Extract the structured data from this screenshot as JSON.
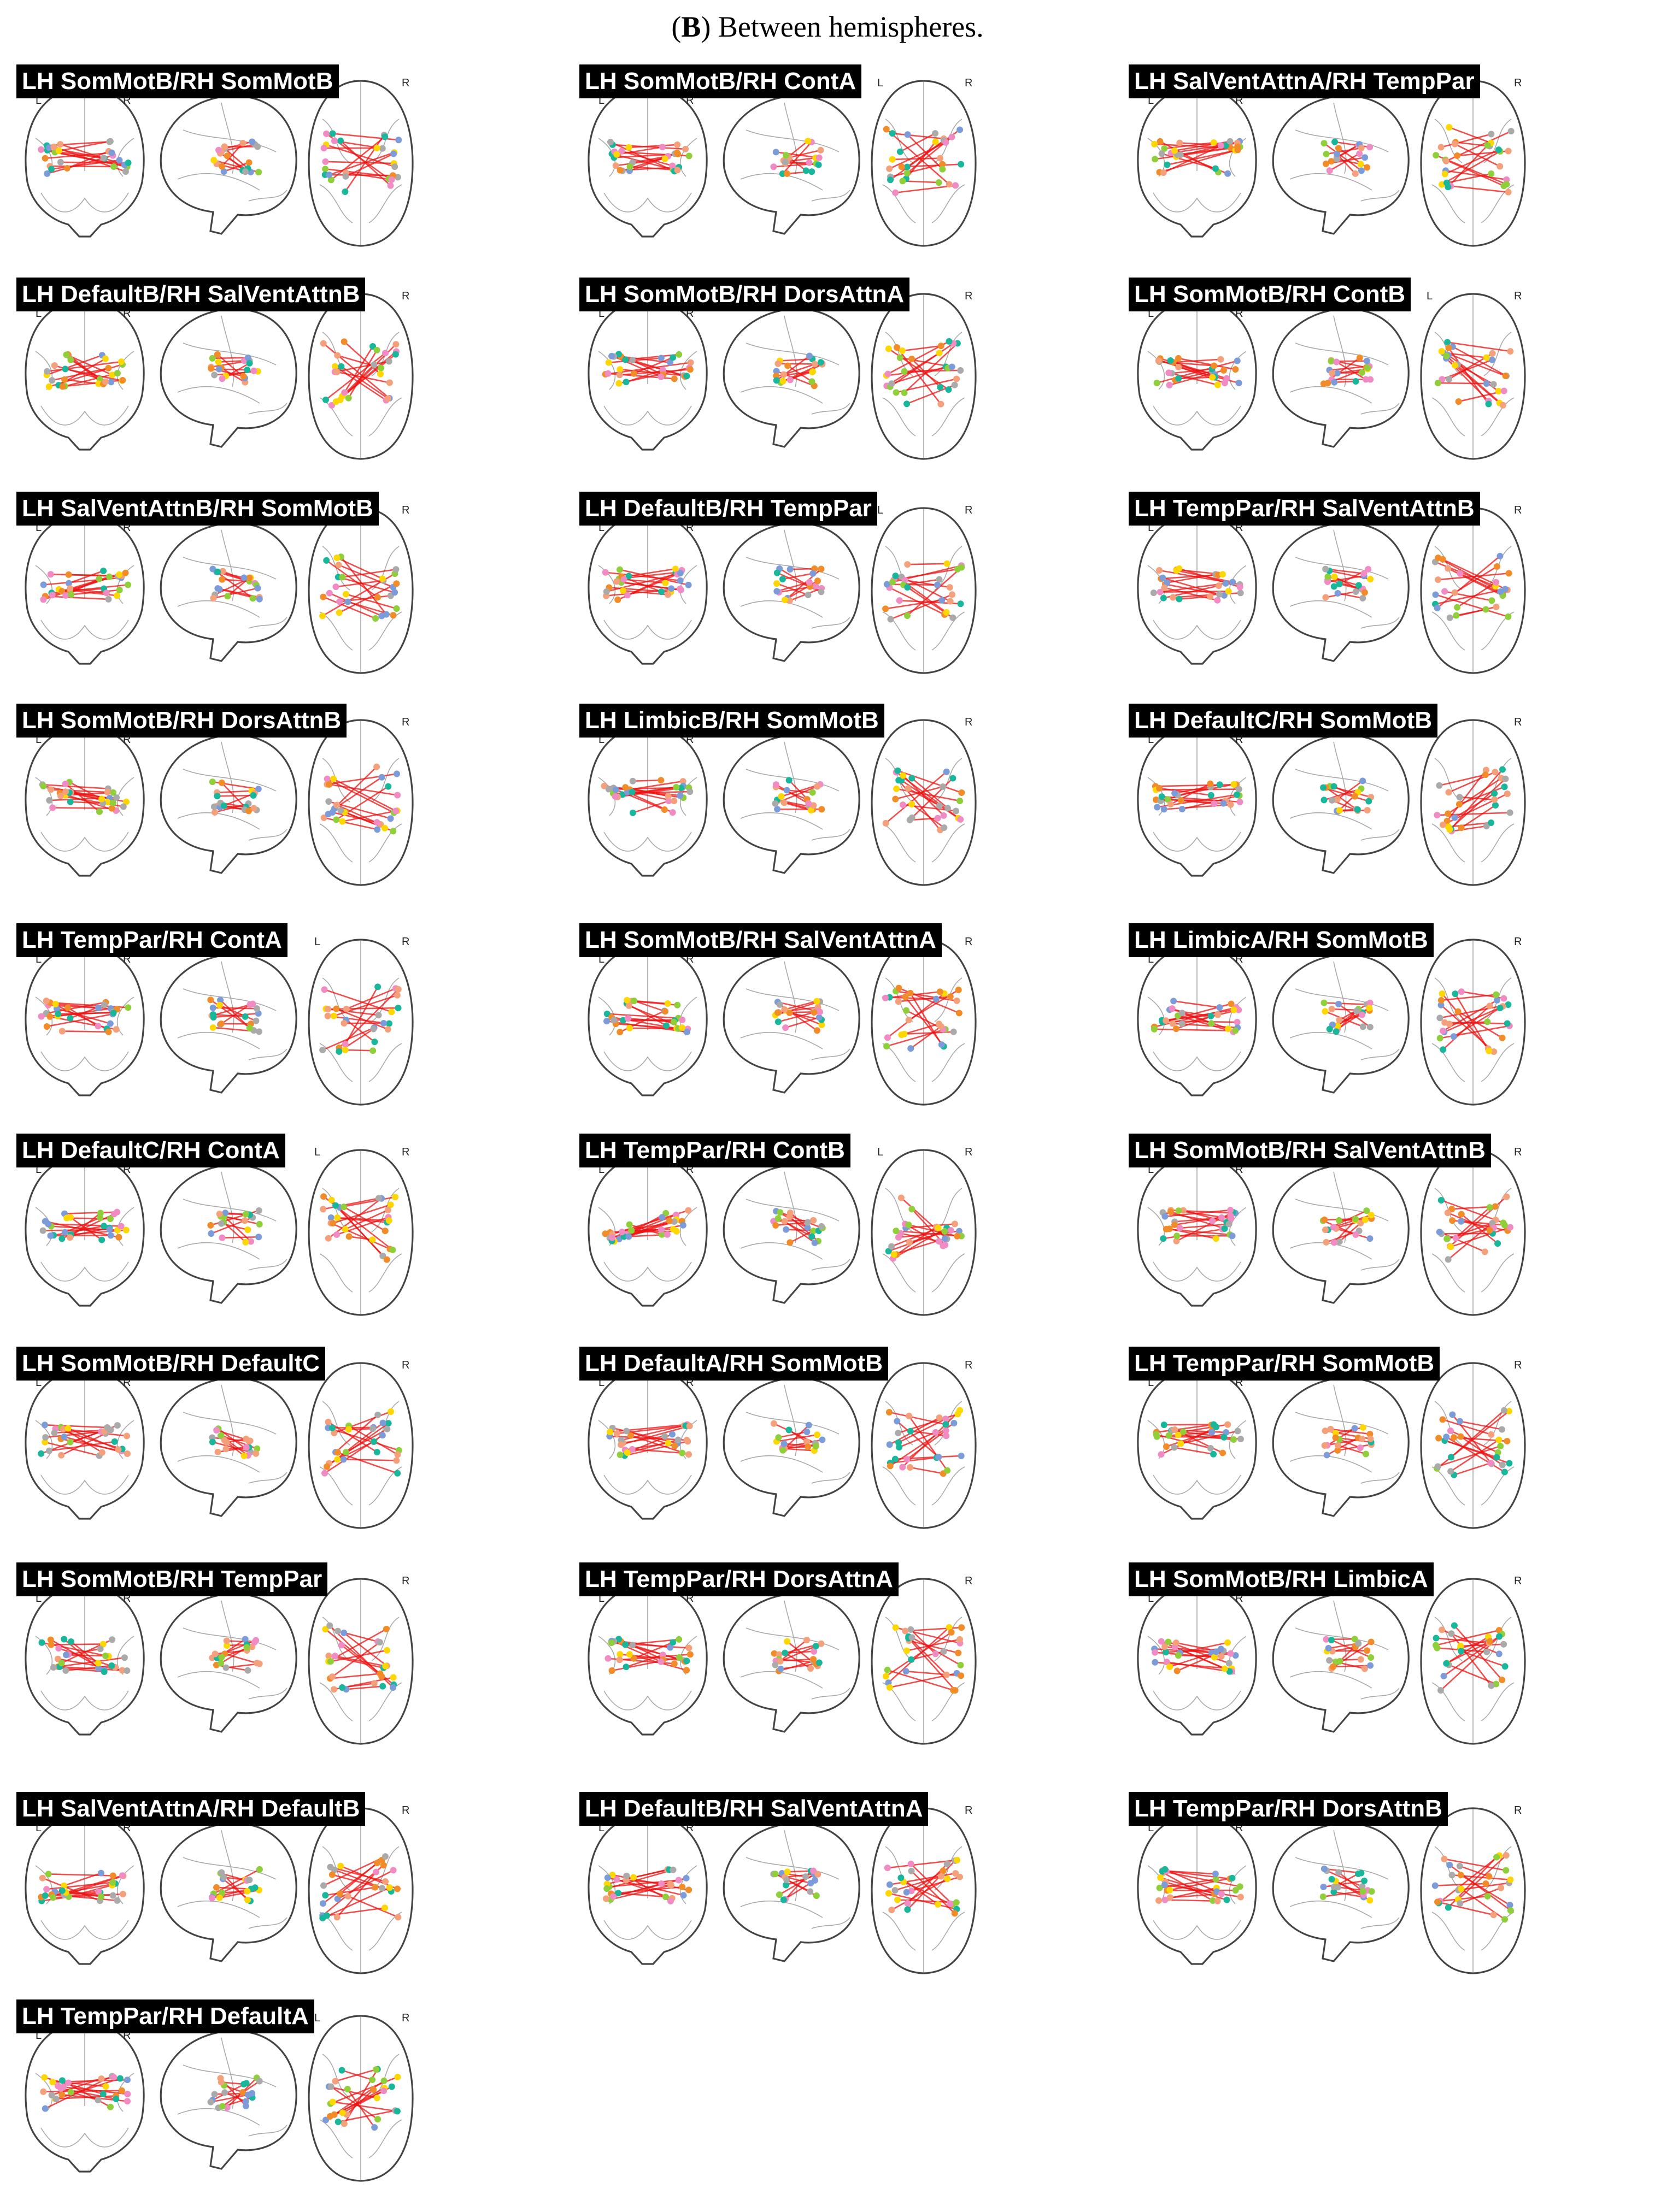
{
  "caption": {
    "panel_letter": "B",
    "text": ") Between hemispheres."
  },
  "hemisphere_markers": {
    "left": "L",
    "right": "R"
  },
  "edge_color": "#ee1111",
  "node_colors": [
    "#ffd700",
    "#8ecf3a",
    "#7b9cd9",
    "#f08bc4",
    "#aaaaaa",
    "#f4a07a",
    "#18b79b",
    "#f28c28"
  ],
  "panels": [
    {
      "label": "LH SomMotB/RH SomMotB"
    },
    {
      "label": "LH SomMotB/RH ContA"
    },
    {
      "label": "LH SalVentAttnA/RH TempPar"
    },
    {
      "label": "LH DefaultB/RH SalVentAttnB"
    },
    {
      "label": "LH SomMotB/RH DorsAttnA"
    },
    {
      "label": "LH SomMotB/RH ContB"
    },
    {
      "label": "LH SalVentAttnB/RH SomMotB"
    },
    {
      "label": "LH DefaultB/RH TempPar"
    },
    {
      "label": "LH TempPar/RH SalVentAttnB"
    },
    {
      "label": "LH SomMotB/RH DorsAttnB"
    },
    {
      "label": "LH LimbicB/RH SomMotB"
    },
    {
      "label": "LH DefaultC/RH SomMotB"
    },
    {
      "label": "LH TempPar/RH ContA"
    },
    {
      "label": "LH SomMotB/RH SalVentAttnA"
    },
    {
      "label": "LH LimbicA/RH SomMotB"
    },
    {
      "label": "LH DefaultC/RH ContA"
    },
    {
      "label": "LH TempPar/RH ContB"
    },
    {
      "label": "LH SomMotB/RH SalVentAttnB"
    },
    {
      "label": "LH SomMotB/RH DefaultC"
    },
    {
      "label": "LH DefaultA/RH SomMotB"
    },
    {
      "label": "LH TempPar/RH SomMotB"
    },
    {
      "label": "LH SomMotB/RH TempPar"
    },
    {
      "label": "LH TempPar/RH DorsAttnA"
    },
    {
      "label": "LH SomMotB/RH LimbicA"
    },
    {
      "label": "LH SalVentAttnA/RH DefaultB"
    },
    {
      "label": "LH DefaultB/RH SalVentAttnA"
    },
    {
      "label": "LH TempPar/RH DorsAttnB"
    },
    {
      "label": "LH TempPar/RH DefaultA"
    }
  ]
}
